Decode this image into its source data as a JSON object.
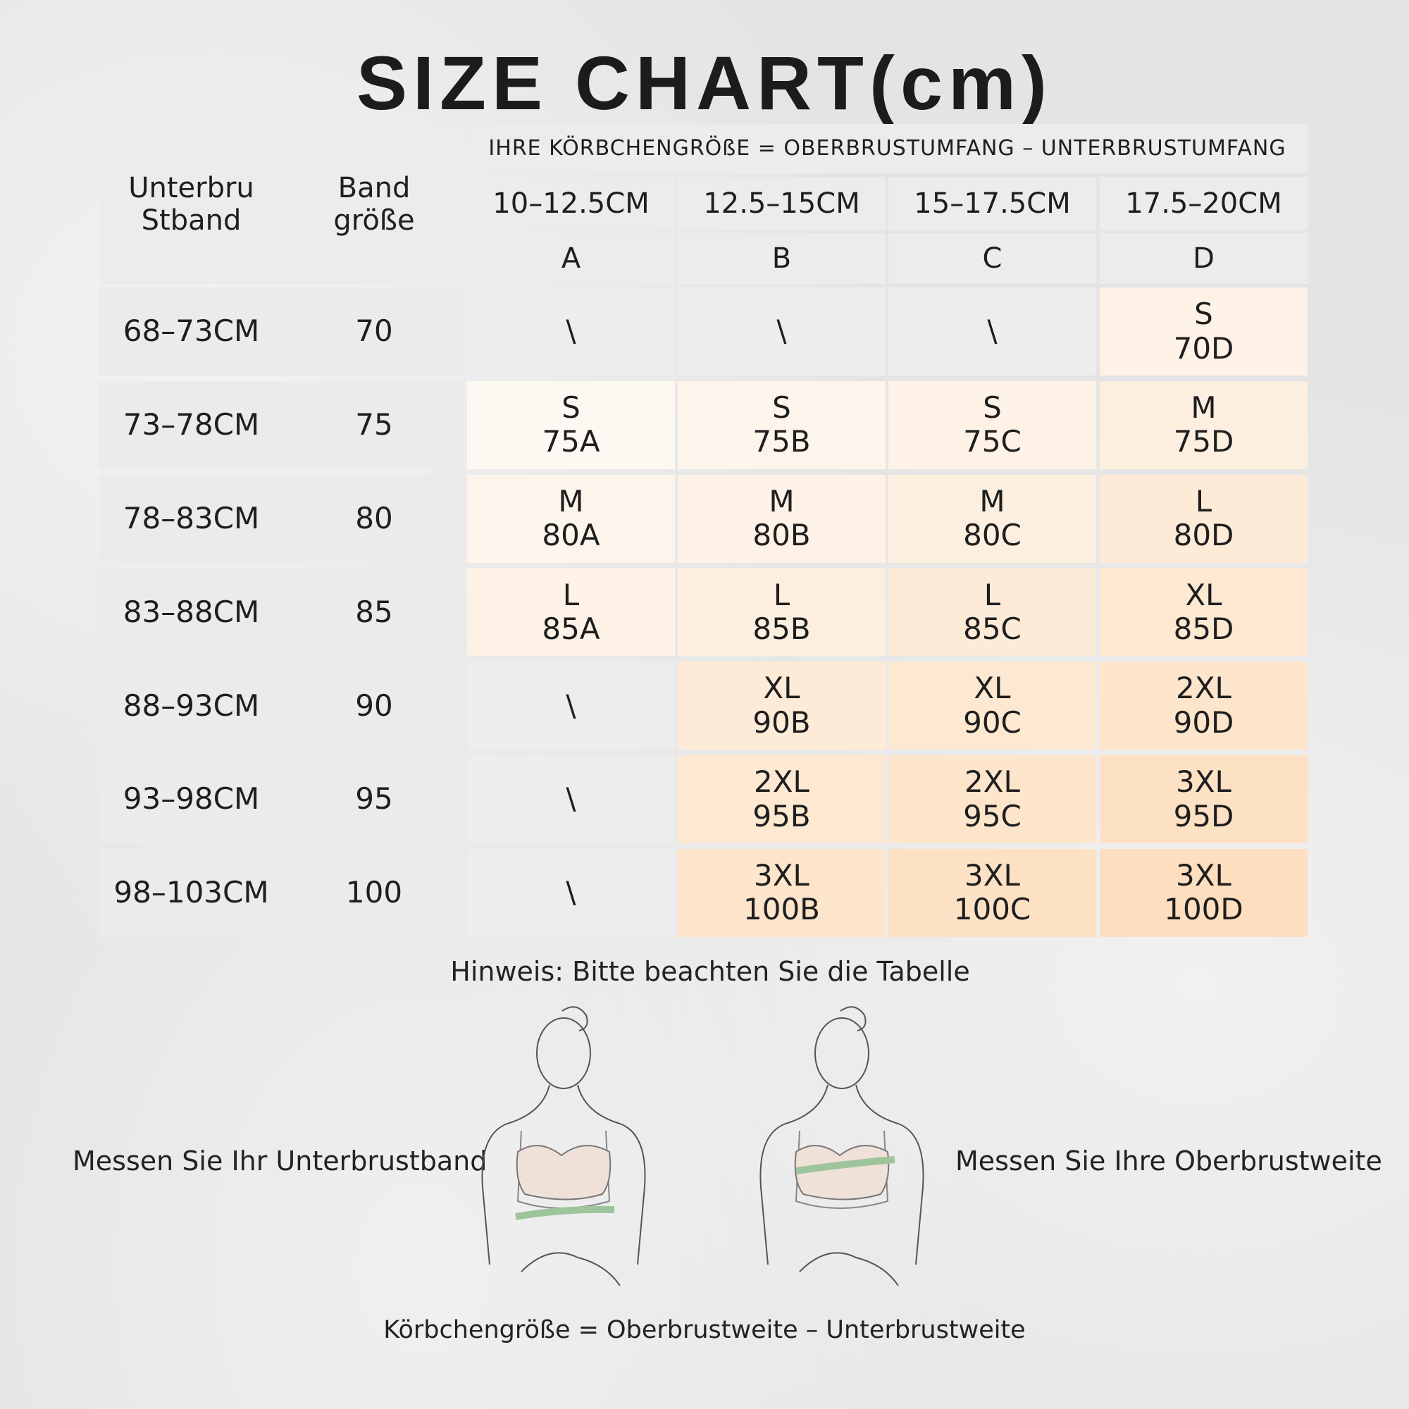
{
  "title": "SIZE CHART(cm)",
  "table": {
    "header_underbust": [
      "Unterbru",
      "Stband"
    ],
    "header_band": [
      "Band",
      "größe"
    ],
    "cup_note": "IHRE KÖRBCHENGRÖßE = OBERBRUSTUMFANG – UNTERBRUSTUMFANG",
    "cup_ranges": [
      "10–12.5CM",
      "12.5–15CM",
      "15–17.5CM",
      "17.5–20CM"
    ],
    "cups": [
      "A",
      "B",
      "C",
      "D"
    ],
    "rows": [
      {
        "underbust": "68–73CM",
        "band": "70",
        "cells": [
          [
            "\\"
          ],
          [
            "\\"
          ],
          [
            "\\"
          ],
          [
            "S",
            "70D"
          ]
        ]
      },
      {
        "underbust": "73–78CM",
        "band": "75",
        "cells": [
          [
            "S",
            "75A"
          ],
          [
            "S",
            "75B"
          ],
          [
            "S",
            "75C"
          ],
          [
            "M",
            "75D"
          ]
        ]
      },
      {
        "underbust": "78–83CM",
        "band": "80",
        "cells": [
          [
            "M",
            "80A"
          ],
          [
            "M",
            "80B"
          ],
          [
            "M",
            "80C"
          ],
          [
            "L",
            "80D"
          ]
        ]
      },
      {
        "underbust": "83–88CM",
        "band": "85",
        "cells": [
          [
            "L",
            "85A"
          ],
          [
            "L",
            "85B"
          ],
          [
            "L",
            "85C"
          ],
          [
            "XL",
            "85D"
          ]
        ]
      },
      {
        "underbust": "88–93CM",
        "band": "90",
        "cells": [
          [
            "\\"
          ],
          [
            "XL",
            "90B"
          ],
          [
            "XL",
            "90C"
          ],
          [
            "2XL",
            "90D"
          ]
        ]
      },
      {
        "underbust": "93–98CM",
        "band": "95",
        "cells": [
          [
            "\\"
          ],
          [
            "2XL",
            "95B"
          ],
          [
            "2XL",
            "95C"
          ],
          [
            "3XL",
            "95D"
          ]
        ]
      },
      {
        "underbust": "98–103CM",
        "band": "100",
        "cells": [
          [
            "\\"
          ],
          [
            "3XL",
            "100B"
          ],
          [
            "3XL",
            "100C"
          ],
          [
            "3XL",
            "100D"
          ]
        ]
      }
    ]
  },
  "hint": "Hinweis: Bitte beachten Sie die Tabelle",
  "measure_left": "Messen Sie Ihr Unterbrustband",
  "measure_right": "Messen Sie Ihre Oberbrustweite",
  "formula": "Körbchengröße = Oberbrustweite – Unterbrustweite"
}
